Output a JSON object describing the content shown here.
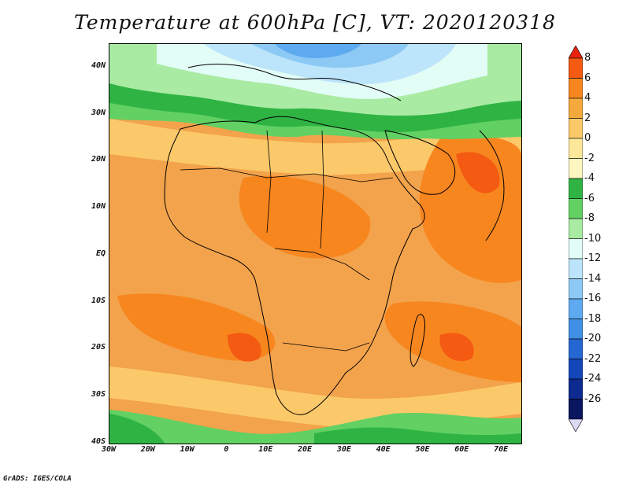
{
  "title": "Temperature at 600hPa [C], VT: 2020120318",
  "footer": "GrADS: IGES/COLA",
  "map": {
    "lon_range": [
      -30,
      75
    ],
    "lat_range": [
      -40,
      45
    ],
    "lat_ticks": [
      {
        "lat": 40,
        "label": "40N"
      },
      {
        "lat": 30,
        "label": "30N"
      },
      {
        "lat": 20,
        "label": "20N"
      },
      {
        "lat": 10,
        "label": "10N"
      },
      {
        "lat": 0,
        "label": "EQ"
      },
      {
        "lat": -10,
        "label": "10S"
      },
      {
        "lat": -20,
        "label": "20S"
      },
      {
        "lat": -30,
        "label": "30S"
      },
      {
        "lat": -40,
        "label": "40S"
      }
    ],
    "lon_ticks": [
      {
        "lon": -30,
        "label": "30W"
      },
      {
        "lon": -20,
        "label": "20W"
      },
      {
        "lon": -10,
        "label": "10W"
      },
      {
        "lon": 0,
        "label": "0"
      },
      {
        "lon": 10,
        "label": "10E"
      },
      {
        "lon": 20,
        "label": "20E"
      },
      {
        "lon": 30,
        "label": "30E"
      },
      {
        "lon": 40,
        "label": "40E"
      },
      {
        "lon": 50,
        "label": "50E"
      },
      {
        "lon": 60,
        "label": "60E"
      },
      {
        "lon": 70,
        "label": "70E"
      }
    ]
  },
  "colorbar": {
    "levels": [
      "8",
      "6",
      "4",
      "2",
      "0",
      "-2",
      "-4",
      "-6",
      "-8",
      "-10",
      "-12",
      "-14",
      "-16",
      "-18",
      "-20",
      "-22",
      "-24",
      "-26"
    ],
    "colors": [
      "#e8220d",
      "#f45a12",
      "#f7861f",
      "#f5a93c",
      "#fbc96a",
      "#fde79a",
      "#fdf6c0",
      "#2fb443",
      "#62d063",
      "#a9eba3",
      "#e2fcf6",
      "#bce4fa",
      "#8ccaf5",
      "#5eaaf0",
      "#3f8fe4",
      "#2467d2",
      "#1346b8",
      "#0c2a8f",
      "#0a1660",
      "#dcd9f5"
    ]
  },
  "fields": {
    "background": "#f3a34b",
    "north_cold_1": "#62d063",
    "north_cold_2": "#2fb443",
    "north_cold_3": "#a9eba3",
    "north_cold_4": "#e2fcf6",
    "north_cold_5": "#bce4fa",
    "north_cold_6": "#8ccaf5",
    "north_cold_7": "#5eaaf0",
    "warm_patch": "#f7861f",
    "hot_patch": "#f45a12",
    "south_green": "#62d063",
    "south_dark": "#2fb443",
    "light_band": "#fbc96a"
  }
}
